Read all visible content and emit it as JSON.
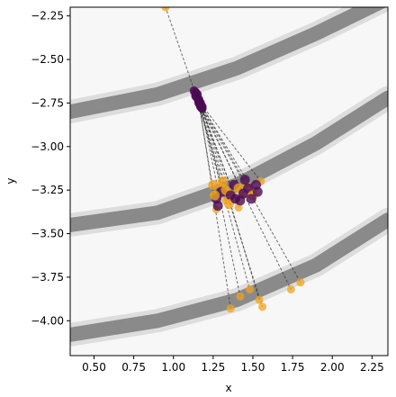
{
  "chart_data": {
    "type": "scatter",
    "title": "",
    "xlabel": "x",
    "ylabel": "y",
    "xlim": [
      0.35,
      2.35
    ],
    "ylim": [
      -4.2,
      -2.2
    ],
    "xticks": [
      "0.50",
      "0.75",
      "1.00",
      "1.25",
      "1.50",
      "1.75",
      "2.00",
      "2.25"
    ],
    "yticks": [
      "-2.25",
      "-2.50",
      "-2.75",
      "-3.00",
      "-3.25",
      "-3.50",
      "-3.75",
      "-4.00"
    ],
    "grid": false,
    "legend": "none",
    "colors": {
      "background": "#f7f7f7",
      "band": "#8a8a8a",
      "band_light": "#c9c9c9",
      "trajectory": "#333333",
      "start_point": "#4b0a55",
      "end_point": "#f0a31a"
    },
    "bands": [
      {
        "x": [
          0.35,
          0.9,
          1.4,
          1.9,
          2.35
        ],
        "y": [
          -2.8,
          -2.7,
          -2.55,
          -2.35,
          -2.15
        ]
      },
      {
        "x": [
          0.35,
          0.9,
          1.4,
          1.9,
          2.35
        ],
        "y": [
          -3.45,
          -3.38,
          -3.22,
          -2.98,
          -2.72
        ]
      },
      {
        "x": [
          0.35,
          0.9,
          1.4,
          1.9,
          2.35
        ],
        "y": [
          -4.08,
          -4.0,
          -3.88,
          -3.68,
          -3.42
        ]
      }
    ],
    "trajectories": [
      {
        "start": [
          1.14,
          -2.7
        ],
        "end": [
          0.95,
          -2.2
        ]
      },
      {
        "start": [
          1.16,
          -2.74
        ],
        "end": [
          1.36,
          -3.93
        ]
      },
      {
        "start": [
          1.17,
          -2.76
        ],
        "end": [
          1.42,
          -3.86
        ]
      },
      {
        "start": [
          1.15,
          -2.72
        ],
        "end": [
          1.48,
          -3.82
        ]
      },
      {
        "start": [
          1.18,
          -2.78
        ],
        "end": [
          1.54,
          -3.88
        ]
      },
      {
        "start": [
          1.13,
          -2.68
        ],
        "end": [
          1.56,
          -3.92
        ]
      },
      {
        "start": [
          1.16,
          -2.75
        ],
        "end": [
          1.8,
          -3.78
        ]
      },
      {
        "start": [
          1.17,
          -2.77
        ],
        "end": [
          1.74,
          -3.82
        ]
      },
      {
        "start": [
          1.15,
          -2.7
        ],
        "end": [
          1.27,
          -3.36
        ]
      },
      {
        "start": [
          1.16,
          -2.73
        ],
        "end": [
          1.33,
          -3.31
        ]
      },
      {
        "start": [
          1.17,
          -2.76
        ],
        "end": [
          1.39,
          -3.3
        ]
      },
      {
        "start": [
          1.18,
          -2.77
        ],
        "end": [
          1.44,
          -3.28
        ]
      },
      {
        "start": [
          1.14,
          -2.71
        ],
        "end": [
          1.5,
          -3.25
        ]
      },
      {
        "start": [
          1.16,
          -2.74
        ],
        "end": [
          1.55,
          -3.2
        ]
      },
      {
        "start": [
          1.15,
          -2.72
        ],
        "end": [
          1.3,
          -3.23
        ]
      },
      {
        "start": [
          1.17,
          -2.75
        ],
        "end": [
          1.46,
          -3.22
        ]
      },
      {
        "start": [
          1.18,
          -2.78
        ],
        "end": [
          1.36,
          -3.27
        ]
      },
      {
        "start": [
          1.14,
          -2.69
        ],
        "end": [
          1.41,
          -3.35
        ]
      }
    ],
    "cluster_points": [
      [
        1.25,
        -3.22
      ],
      [
        1.27,
        -3.3
      ],
      [
        1.3,
        -3.26
      ],
      [
        1.33,
        -3.25
      ],
      [
        1.36,
        -3.28
      ],
      [
        1.38,
        -3.22
      ],
      [
        1.41,
        -3.24
      ],
      [
        1.44,
        -3.27
      ],
      [
        1.47,
        -3.24
      ],
      [
        1.5,
        -3.28
      ],
      [
        1.52,
        -3.22
      ],
      [
        1.28,
        -3.34
      ],
      [
        1.35,
        -3.33
      ],
      [
        1.42,
        -3.31
      ],
      [
        1.49,
        -3.3
      ],
      [
        1.31,
        -3.2
      ],
      [
        1.45,
        -3.19
      ],
      [
        1.39,
        -3.3
      ],
      [
        1.26,
        -3.28
      ],
      [
        1.53,
        -3.26
      ]
    ]
  }
}
